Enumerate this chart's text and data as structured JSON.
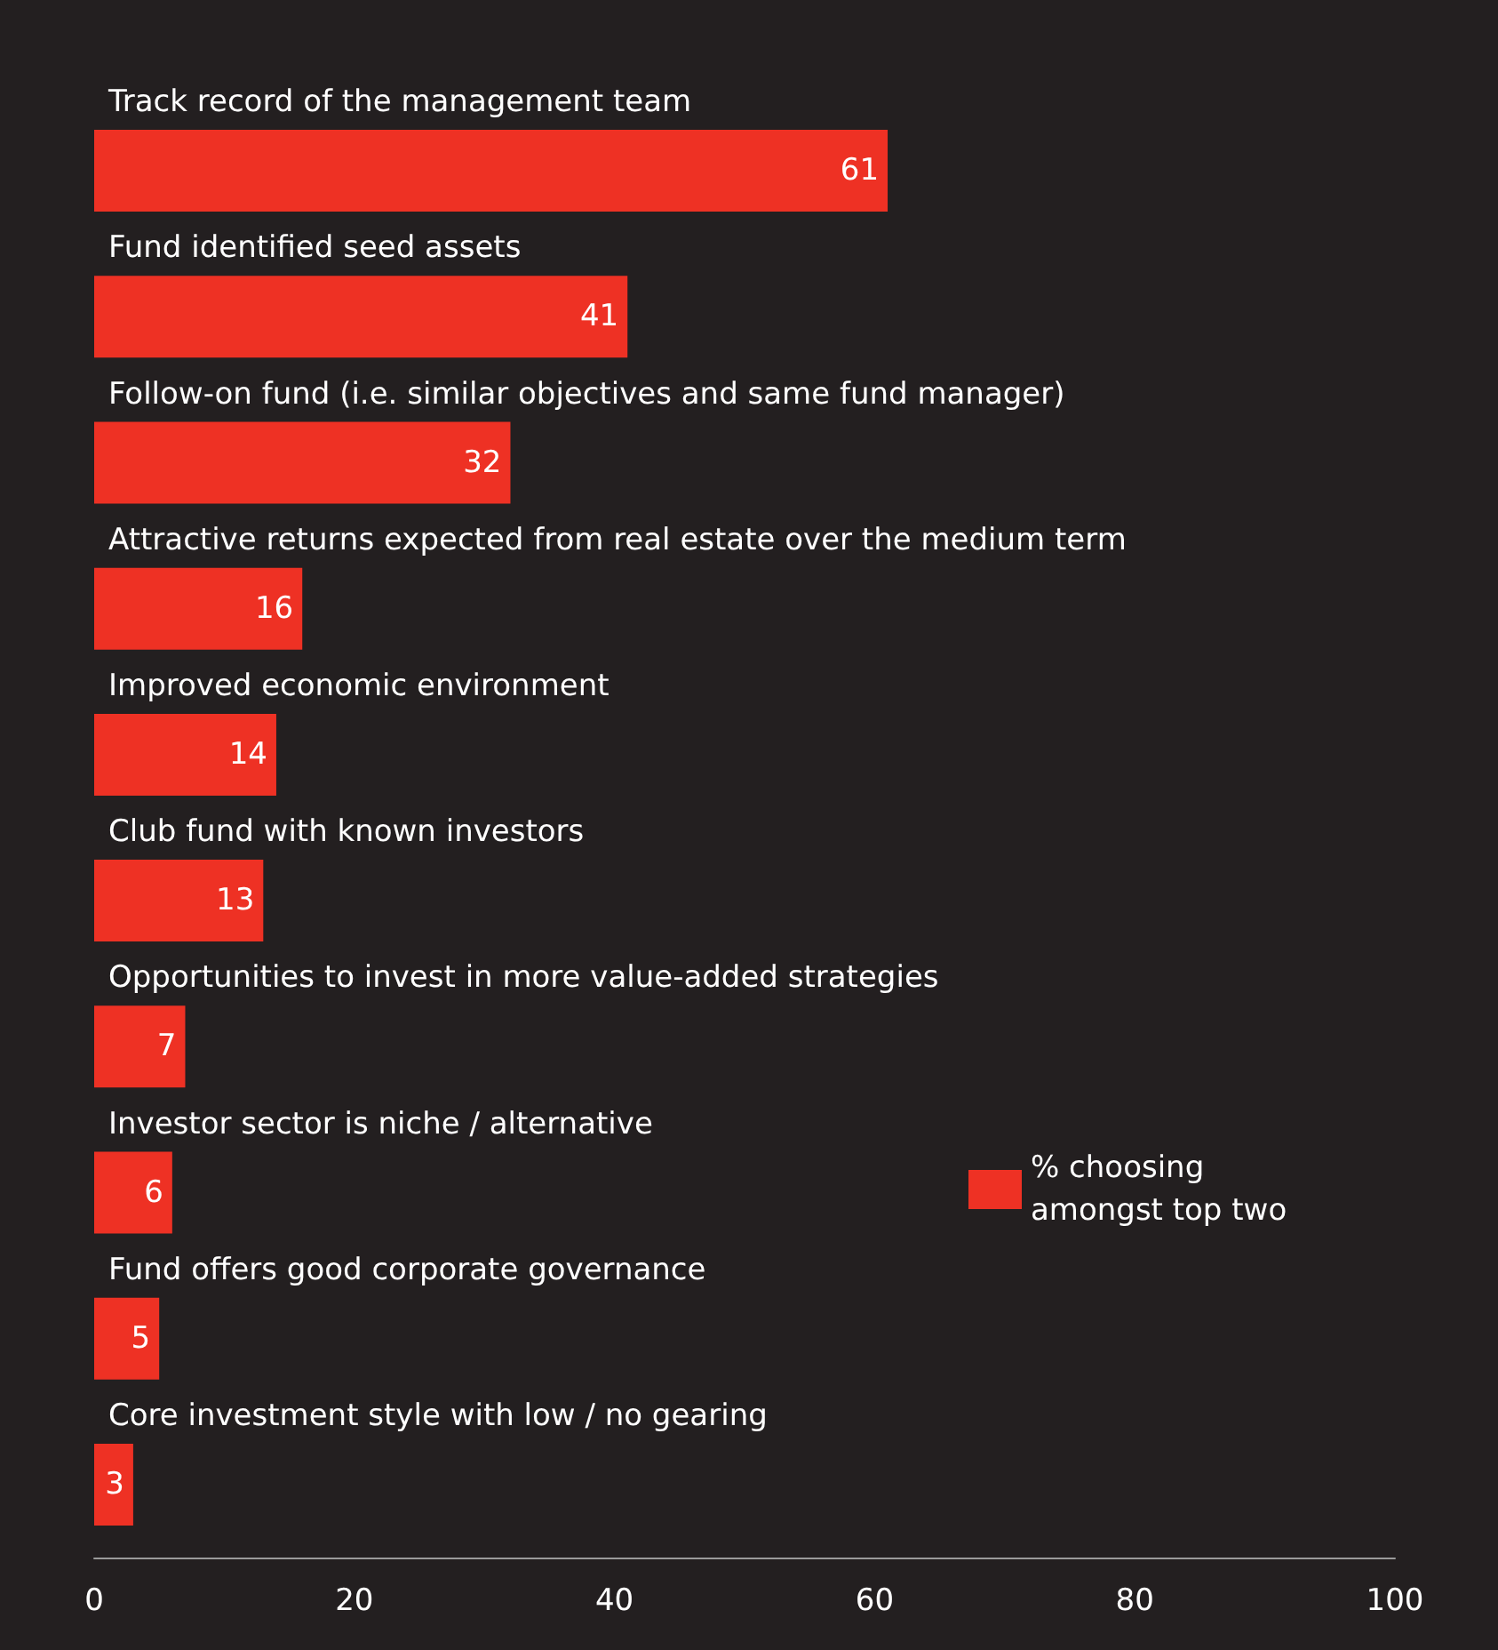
{
  "chart_data": {
    "type": "bar",
    "orientation": "horizontal",
    "categories": [
      "Track record of the management team",
      "Fund identified seed assets",
      "Follow-on fund (i.e. similar objectives and same fund manager)",
      "Attractive returns expected from real estate over the medium term",
      "Improved economic environment",
      "Club fund with known investors",
      "Opportunities to invest in more value-added strategies",
      "Investor sector is niche / alternative",
      "Fund offers good corporate governance",
      "Core investment style with low / no gearing"
    ],
    "series": [
      {
        "name": "% choosing amongst top two",
        "color": "#ee3124",
        "values": [
          61,
          41,
          32,
          16,
          14,
          13,
          7,
          6,
          5,
          3
        ]
      }
    ],
    "xlim": [
      0,
      100
    ],
    "xticks": [
      0,
      20,
      40,
      60,
      80,
      100
    ],
    "data_labels": true,
    "grid": false,
    "legend": "right"
  }
}
